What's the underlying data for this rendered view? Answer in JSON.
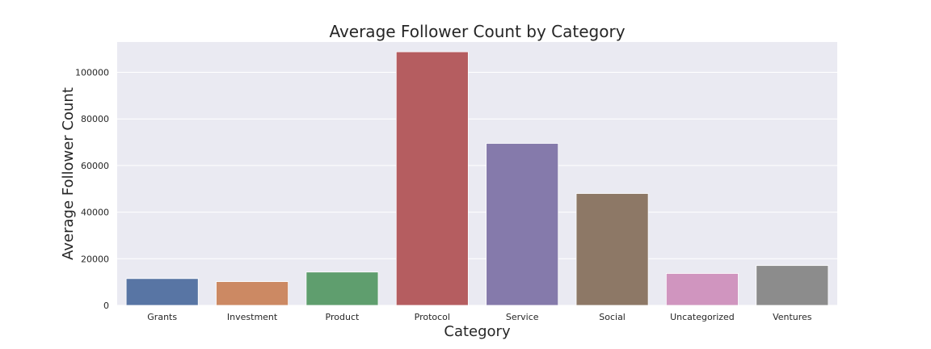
{
  "chart_data": {
    "type": "bar",
    "title": "Average Follower Count by Category",
    "xlabel": "Category",
    "ylabel": "Average Follower Count",
    "categories": [
      "Grants",
      "Investment",
      "Product",
      "Protocol",
      "Service",
      "Social",
      "Uncategorized",
      "Ventures"
    ],
    "values": [
      11500,
      10200,
      14300,
      108800,
      69500,
      48000,
      13700,
      17100
    ],
    "colors": [
      "#5875a4",
      "#cc8963",
      "#5f9e6e",
      "#b55d60",
      "#857aab",
      "#8d7866",
      "#d095bf",
      "#8c8c8c"
    ],
    "ylim": [
      0,
      113000
    ],
    "yticks": [
      0,
      20000,
      40000,
      60000,
      80000,
      100000
    ],
    "grid": true,
    "legend": "none",
    "background_color": "#eaeaf2",
    "grid_color": "#ffffff"
  }
}
